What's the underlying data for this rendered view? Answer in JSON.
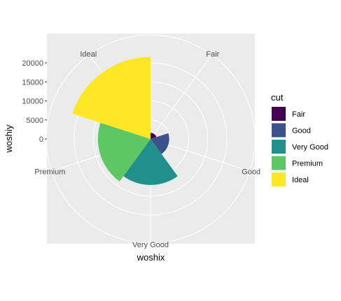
{
  "chart_data": {
    "type": "bar",
    "coord": "polar",
    "categories": [
      "Fair",
      "Good",
      "Very Good",
      "Premium",
      "Ideal"
    ],
    "values": [
      1610,
      4906,
      12082,
      13791,
      21551
    ],
    "xlabel": "woshix",
    "ylabel": "woshiy",
    "y_ticks": [
      0,
      5000,
      10000,
      15000,
      20000
    ],
    "y_tick_labels": [
      "0",
      "5000",
      "10000",
      "15000",
      "20000"
    ],
    "grid": true,
    "legend": {
      "title": "cut",
      "placement": "right",
      "entries": [
        "Fair",
        "Good",
        "Very Good",
        "Premium",
        "Ideal"
      ]
    },
    "colors": [
      "#440154",
      "#3B528B",
      "#21908C",
      "#5DC863",
      "#FDE725"
    ],
    "panel_background": "#EBEBEB",
    "grid_color": "#FFFFFF"
  }
}
